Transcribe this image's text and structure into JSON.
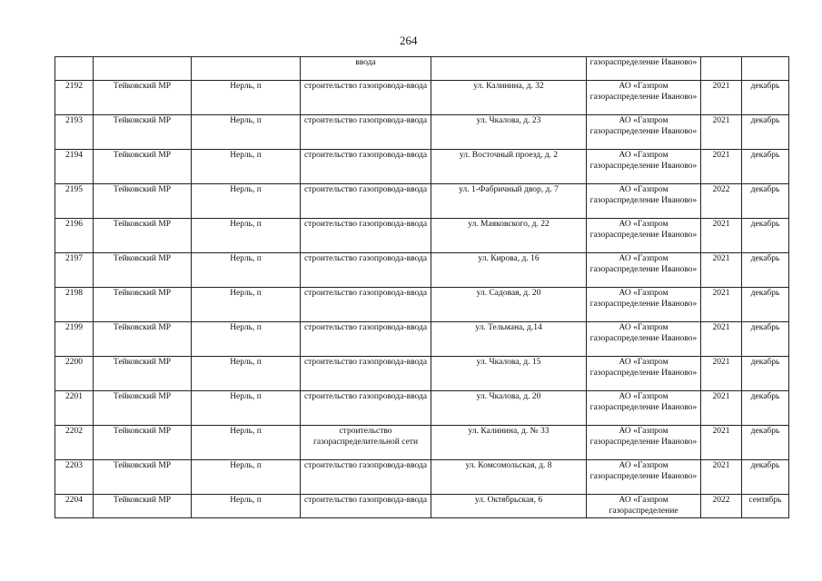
{
  "page_number": "264",
  "continuation_row": {
    "work": "ввода",
    "contractor": "газораспределение Иваново»"
  },
  "rows": [
    {
      "n": "2192",
      "district": "Тейковский МР",
      "settlement": "Нерль, п",
      "work": "строительство газопровода-ввода",
      "address": "ул.  Калинина, д. 32",
      "contractor": "АО «Газпром газораспределение Иваново»",
      "year": "2021",
      "month": "декабрь"
    },
    {
      "n": "2193",
      "district": "Тейковский МР",
      "settlement": "Нерль, п",
      "work": "строительство газопровода-ввода",
      "address": "ул. Чкалова, д. 23",
      "contractor": "АО «Газпром газораспределение Иваново»",
      "year": "2021",
      "month": "декабрь"
    },
    {
      "n": "2194",
      "district": "Тейковский МР",
      "settlement": "Нерль, п",
      "work": "строительство газопровода-ввода",
      "address": "ул. Восточный проезд, д. 2",
      "contractor": "АО «Газпром газораспределение Иваново»",
      "year": "2021",
      "month": "декабрь"
    },
    {
      "n": "2195",
      "district": "Тейковский МР",
      "settlement": "Нерль, п",
      "work": "строительство газопровода-ввода",
      "address": "ул. 1-Фабричный двор, д. 7",
      "contractor": "АО «Газпром газораспределение Иваново»",
      "year": "2022",
      "month": "декабрь"
    },
    {
      "n": "2196",
      "district": "Тейковский МР",
      "settlement": "Нерль, п",
      "work": "строительство газопровода-ввода",
      "address": "ул. Маяковского, д. 22",
      "contractor": "АО «Газпром газораспределение Иваново»",
      "year": "2021",
      "month": "декабрь"
    },
    {
      "n": "2197",
      "district": "Тейковский МР",
      "settlement": "Нерль, п",
      "work": "строительство газопровода-ввода",
      "address": "ул. Кирова, д. 16",
      "contractor": "АО «Газпром газораспределение Иваново»",
      "year": "2021",
      "month": "декабрь"
    },
    {
      "n": "2198",
      "district": "Тейковский МР",
      "settlement": "Нерль, п",
      "work": "строительство газопровода-ввода",
      "address": "ул. Садовая, д. 20",
      "contractor": "АО «Газпром газораспределение Иваново»",
      "year": "2021",
      "month": "декабрь"
    },
    {
      "n": "2199",
      "district": "Тейковский МР",
      "settlement": "Нерль, п",
      "work": "строительство газопровода-ввода",
      "address": "ул. Тельмана, д.14",
      "contractor": "АО «Газпром газораспределение Иваново»",
      "year": "2021",
      "month": "декабрь"
    },
    {
      "n": "2200",
      "district": "Тейковский МР",
      "settlement": "Нерль, п",
      "work": "строительство газопровода-ввода",
      "address": "ул. Чкалова, д. 15",
      "contractor": "АО «Газпром газораспределение Иваново»",
      "year": "2021",
      "month": "декабрь"
    },
    {
      "n": "2201",
      "district": "Тейковский МР",
      "settlement": "Нерль, п",
      "work": "строительство газопровода-ввода",
      "address": "ул. Чкалова, д. 20",
      "contractor": "АО «Газпром газораспределение Иваново»",
      "year": "2021",
      "month": "декабрь"
    },
    {
      "n": "2202",
      "district": "Тейковский МР",
      "settlement": "Нерль, п",
      "work": "строительство газораспределительной сети",
      "address": "ул. Калинина, д. № 33",
      "contractor": "АО «Газпром газораспределение Иваново»",
      "year": "2021",
      "month": "декабрь"
    },
    {
      "n": "2203",
      "district": "Тейковский МР",
      "settlement": "Нерль, п",
      "work": "строительство газопровода-ввода",
      "address": "ул. Комсомольская, д. 8",
      "contractor": "АО «Газпром газораспределение Иваново»",
      "year": "2021",
      "month": "декабрь"
    },
    {
      "n": "2204",
      "district": "Тейковский МР",
      "settlement": "Нерль, п",
      "work": "строительство газопровода-ввода",
      "address": "ул. Октябрьская, 6",
      "contractor": "АО «Газпром газораспределение",
      "year": "2022",
      "month": "сентябрь"
    }
  ]
}
